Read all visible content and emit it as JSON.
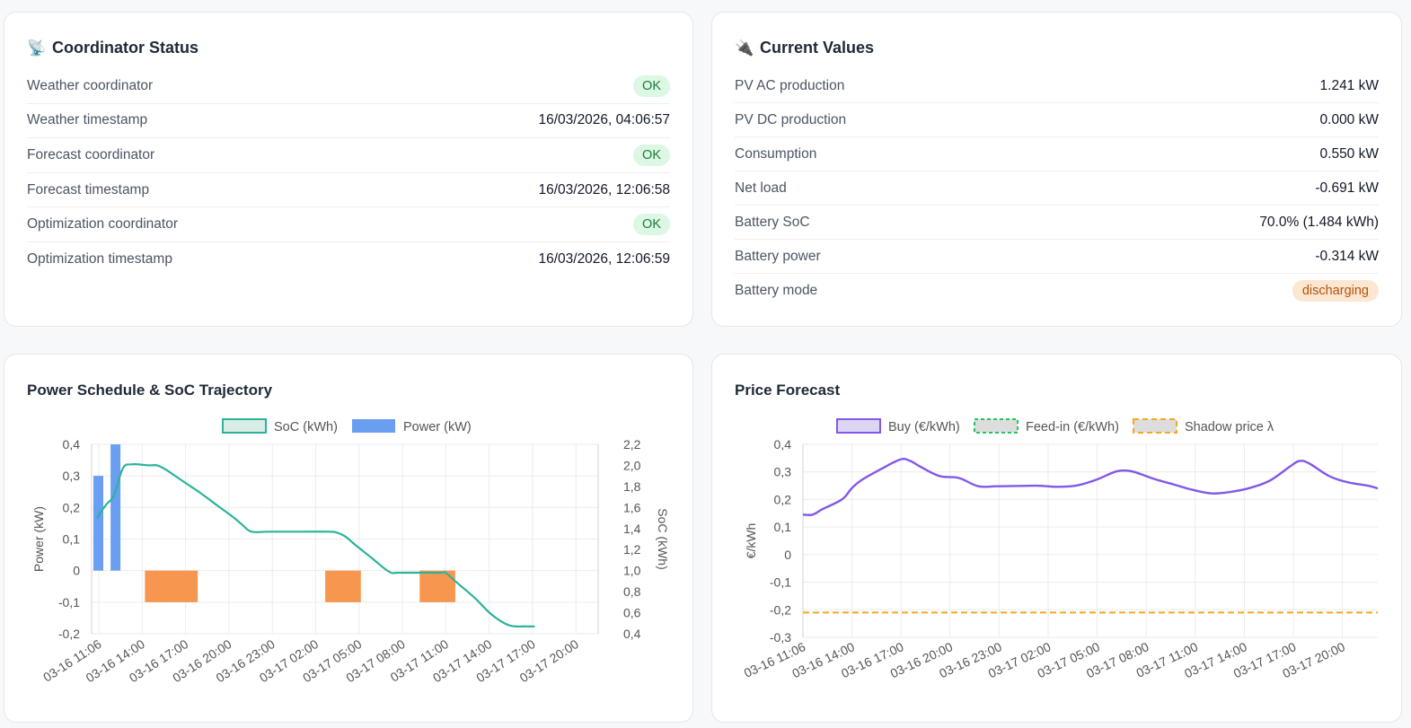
{
  "status": {
    "title": "Coordinator Status",
    "icon": "satellite-icon",
    "rows": [
      {
        "label": "Weather coordinator",
        "value": "OK",
        "type": "badge"
      },
      {
        "label": "Weather timestamp",
        "value": "16/03/2026, 04:06:57",
        "type": "text"
      },
      {
        "label": "Forecast coordinator",
        "value": "OK",
        "type": "badge"
      },
      {
        "label": "Forecast timestamp",
        "value": "16/03/2026, 12:06:58",
        "type": "text"
      },
      {
        "label": "Optimization coordinator",
        "value": "OK",
        "type": "badge"
      },
      {
        "label": "Optimization timestamp",
        "value": "16/03/2026, 12:06:59",
        "type": "text"
      }
    ]
  },
  "values": {
    "title": "Current Values",
    "icon": "plug-icon",
    "rows": [
      {
        "label": "PV AC production",
        "value": "1.241 kW"
      },
      {
        "label": "PV DC production",
        "value": "0.000 kW"
      },
      {
        "label": "Consumption",
        "value": "0.550 kW"
      },
      {
        "label": "Net load",
        "value": "-0.691 kW"
      },
      {
        "label": "Battery SoC",
        "value": "70.0% (1.484 kWh)"
      },
      {
        "label": "Battery power",
        "value": "-0.314 kW"
      },
      {
        "label": "Battery mode",
        "value": "discharging",
        "type": "badge"
      }
    ]
  },
  "power_chart": {
    "title": "Power Schedule & SoC Trajectory",
    "legend": [
      "SoC (kWh)",
      "Power (kW)"
    ],
    "ylabel_left": "Power (kW)",
    "ylabel_right": "SoC (kWh)",
    "left_ticks": [
      "0,4",
      "0,3",
      "0,2",
      "0,1",
      "0",
      "-0,1",
      "-0,2"
    ],
    "right_ticks": [
      "2,2",
      "2,0",
      "1,8",
      "1,6",
      "1,4",
      "1,2",
      "1,0",
      "0,8",
      "0,6",
      "0,4"
    ],
    "x_ticks": [
      "03-16 11:06",
      "03-16 14:00",
      "03-16 17:00",
      "03-16 20:00",
      "03-16 23:00",
      "03-17 02:00",
      "03-17 05:00",
      "03-17 08:00",
      "03-17 11:00",
      "03-17 14:00",
      "03-17 17:00",
      "03-17 20:00"
    ]
  },
  "price_chart": {
    "title": "Price Forecast",
    "legend": [
      "Buy (€/kWh)",
      "Feed-in (€/kWh)",
      "Shadow price λ"
    ],
    "ylabel": "€/kWh",
    "y_ticks": [
      "0,4",
      "0,3",
      "0,2",
      "0,1",
      "0",
      "-0,1",
      "-0,2",
      "-0,3"
    ],
    "x_ticks": [
      "03-16 11:06",
      "03-16 14:00",
      "03-16 17:00",
      "03-16 20:00",
      "03-16 23:00",
      "03-17 02:00",
      "03-17 05:00",
      "03-17 08:00",
      "03-17 11:00",
      "03-17 14:00",
      "03-17 17:00",
      "03-17 20:00"
    ]
  },
  "colors": {
    "soc": "#2bb39a",
    "power_pos": "#6a9ef0",
    "power_neg": "#f7964f",
    "buy": "#8358e8",
    "feedin": "#22c55e",
    "shadow": "#f5a623"
  },
  "chart_data": [
    {
      "type": "bar",
      "title": "Power Schedule & SoC Trajectory",
      "x_unit": "hours since 03-16 11:06",
      "ylabel": "Power (kW)",
      "ylim": [
        -0.2,
        0.4
      ],
      "y2label": "SoC (kWh)",
      "y2lim": [
        0.4,
        2.2
      ],
      "grid": true,
      "legend": "top",
      "series": [
        {
          "name": "Power (kW)",
          "type": "bar",
          "points": [
            [
              0.0,
              0.3
            ],
            [
              1.0,
              0.4
            ],
            [
              3.0,
              -0.1
            ],
            [
              3.5,
              -0.1
            ],
            [
              4.0,
              -0.1
            ],
            [
              4.5,
              -0.1
            ],
            [
              5.0,
              -0.1
            ],
            [
              5.5,
              -0.1
            ],
            [
              13.5,
              -0.1
            ],
            [
              14.0,
              -0.1
            ],
            [
              14.5,
              -0.1
            ],
            [
              15.0,
              -0.1
            ],
            [
              19.0,
              -0.1
            ],
            [
              19.5,
              -0.1
            ],
            [
              20.0,
              -0.1
            ],
            [
              20.5,
              -0.1
            ]
          ]
        },
        {
          "name": "SoC (kWh)",
          "type": "line",
          "axis": "right",
          "points": [
            [
              0.0,
              1.5
            ],
            [
              0.5,
              1.62
            ],
            [
              1.0,
              1.72
            ],
            [
              1.5,
              1.97
            ],
            [
              2.0,
              2.01
            ],
            [
              3.0,
              2.0
            ],
            [
              3.5,
              2.0
            ],
            [
              4.0,
              1.96
            ],
            [
              5.0,
              1.85
            ],
            [
              6.0,
              1.74
            ],
            [
              7.0,
              1.62
            ],
            [
              8.0,
              1.5
            ],
            [
              8.5,
              1.43
            ],
            [
              9.0,
              1.37
            ],
            [
              10.0,
              1.37
            ],
            [
              12.0,
              1.37
            ],
            [
              13.5,
              1.37
            ],
            [
              14.0,
              1.36
            ],
            [
              14.5,
              1.32
            ],
            [
              15.0,
              1.25
            ],
            [
              16.0,
              1.12
            ],
            [
              17.0,
              0.99
            ],
            [
              17.5,
              0.98
            ],
            [
              18.0,
              0.98
            ],
            [
              20.0,
              0.98
            ],
            [
              20.3,
              0.98
            ],
            [
              21.0,
              0.88
            ],
            [
              22.0,
              0.74
            ],
            [
              23.0,
              0.58
            ],
            [
              24.0,
              0.48
            ],
            [
              25.0,
              0.47
            ],
            [
              25.5,
              0.47
            ]
          ]
        }
      ]
    },
    {
      "type": "line",
      "title": "Price Forecast",
      "x_unit": "hours since 03-16 11:06",
      "ylabel": "€/kWh",
      "ylim": [
        -0.3,
        0.4
      ],
      "grid": true,
      "legend": "top",
      "series": [
        {
          "name": "Buy (€/kWh)",
          "points": [
            [
              0.0,
              0.145
            ],
            [
              0.5,
              0.145
            ],
            [
              1.0,
              0.165
            ],
            [
              2.0,
              0.2
            ],
            [
              2.5,
              0.24
            ],
            [
              3.0,
              0.27
            ],
            [
              4.0,
              0.31
            ],
            [
              5.0,
              0.345
            ],
            [
              5.5,
              0.34
            ],
            [
              6.0,
              0.32
            ],
            [
              7.0,
              0.285
            ],
            [
              8.0,
              0.278
            ],
            [
              9.0,
              0.248
            ],
            [
              10.0,
              0.248
            ],
            [
              12.0,
              0.25
            ],
            [
              13.0,
              0.246
            ],
            [
              14.0,
              0.25
            ],
            [
              15.0,
              0.27
            ],
            [
              16.0,
              0.3
            ],
            [
              16.5,
              0.305
            ],
            [
              17.0,
              0.3
            ],
            [
              18.0,
              0.275
            ],
            [
              19.0,
              0.255
            ],
            [
              20.0,
              0.235
            ],
            [
              21.0,
              0.222
            ],
            [
              22.0,
              0.228
            ],
            [
              23.0,
              0.243
            ],
            [
              24.0,
              0.27
            ],
            [
              25.0,
              0.32
            ],
            [
              25.5,
              0.34
            ],
            [
              26.0,
              0.33
            ],
            [
              27.0,
              0.285
            ],
            [
              28.0,
              0.262
            ],
            [
              29.0,
              0.25
            ],
            [
              29.5,
              0.24
            ]
          ]
        },
        {
          "name": "Feed-in (€/kWh)",
          "points": []
        },
        {
          "name": "Shadow price λ",
          "points": [
            [
              0.0,
              -0.21
            ],
            [
              29.5,
              -0.21
            ]
          ]
        }
      ]
    }
  ]
}
